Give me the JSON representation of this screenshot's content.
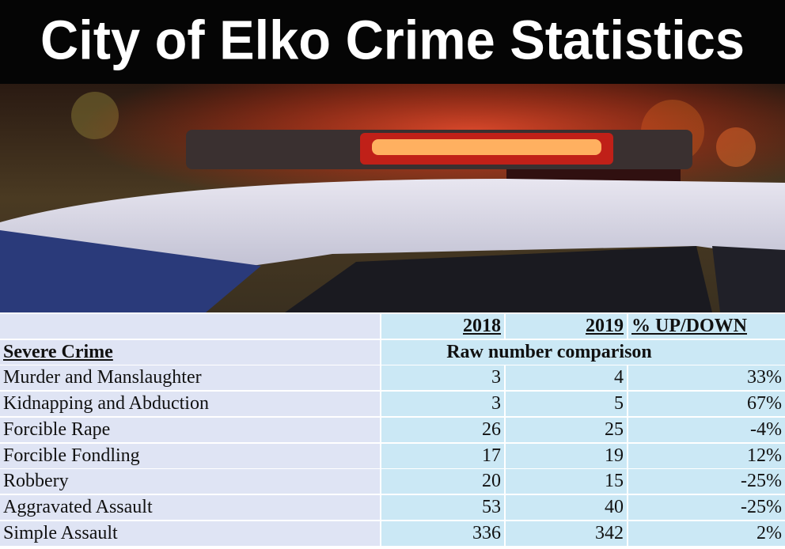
{
  "header": {
    "title": "City of Elko Crime Statistics"
  },
  "table": {
    "columns": [
      "2018",
      "2019",
      "% UP/DOWN"
    ],
    "section": "Severe Crime",
    "subheader": "Raw number comparison",
    "rows": [
      [
        "Murder and Manslaughter",
        3,
        4,
        "33%"
      ],
      [
        "Kidnapping and Abduction",
        3,
        5,
        "67%"
      ],
      [
        "Forcible Rape",
        26,
        25,
        "-4%"
      ],
      [
        "Forcible Fondling",
        17,
        19,
        "12%"
      ],
      [
        "Robbery",
        20,
        15,
        "-25%"
      ],
      [
        "Aggravated Assault",
        53,
        40,
        "-25%"
      ],
      [
        "Simple Assault",
        336,
        342,
        "2%"
      ]
    ]
  }
}
